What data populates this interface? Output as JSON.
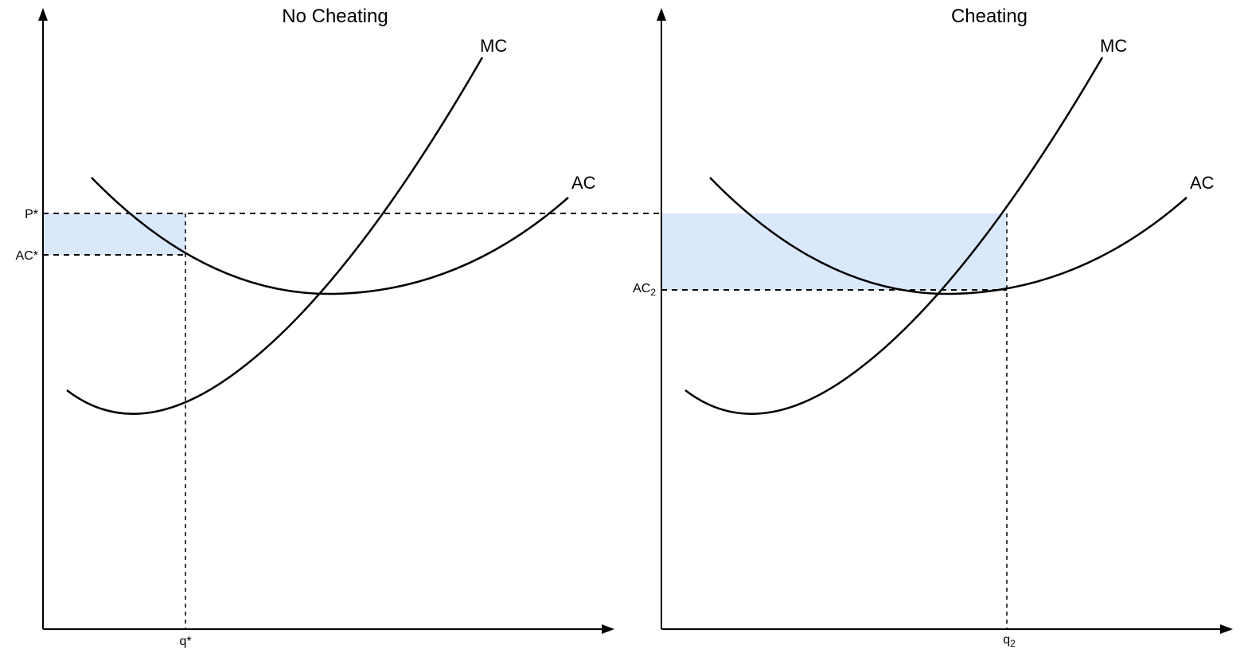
{
  "panels": [
    {
      "title": "No Cheating",
      "mc_label": "MC",
      "ac_label": "AC",
      "price_label": "P*",
      "cost_label": "AC*",
      "cost_label_sub": "",
      "quantity_label": "q*",
      "quantity_label_sub": ""
    },
    {
      "title": "Cheating",
      "mc_label": "MC",
      "ac_label": "AC",
      "price_label": "",
      "cost_label": "AC",
      "cost_label_sub": "2",
      "quantity_label": "q",
      "quantity_label_sub": "2"
    }
  ],
  "colors": {
    "profit_fill": "#dae8fc",
    "line": "#000000"
  }
}
